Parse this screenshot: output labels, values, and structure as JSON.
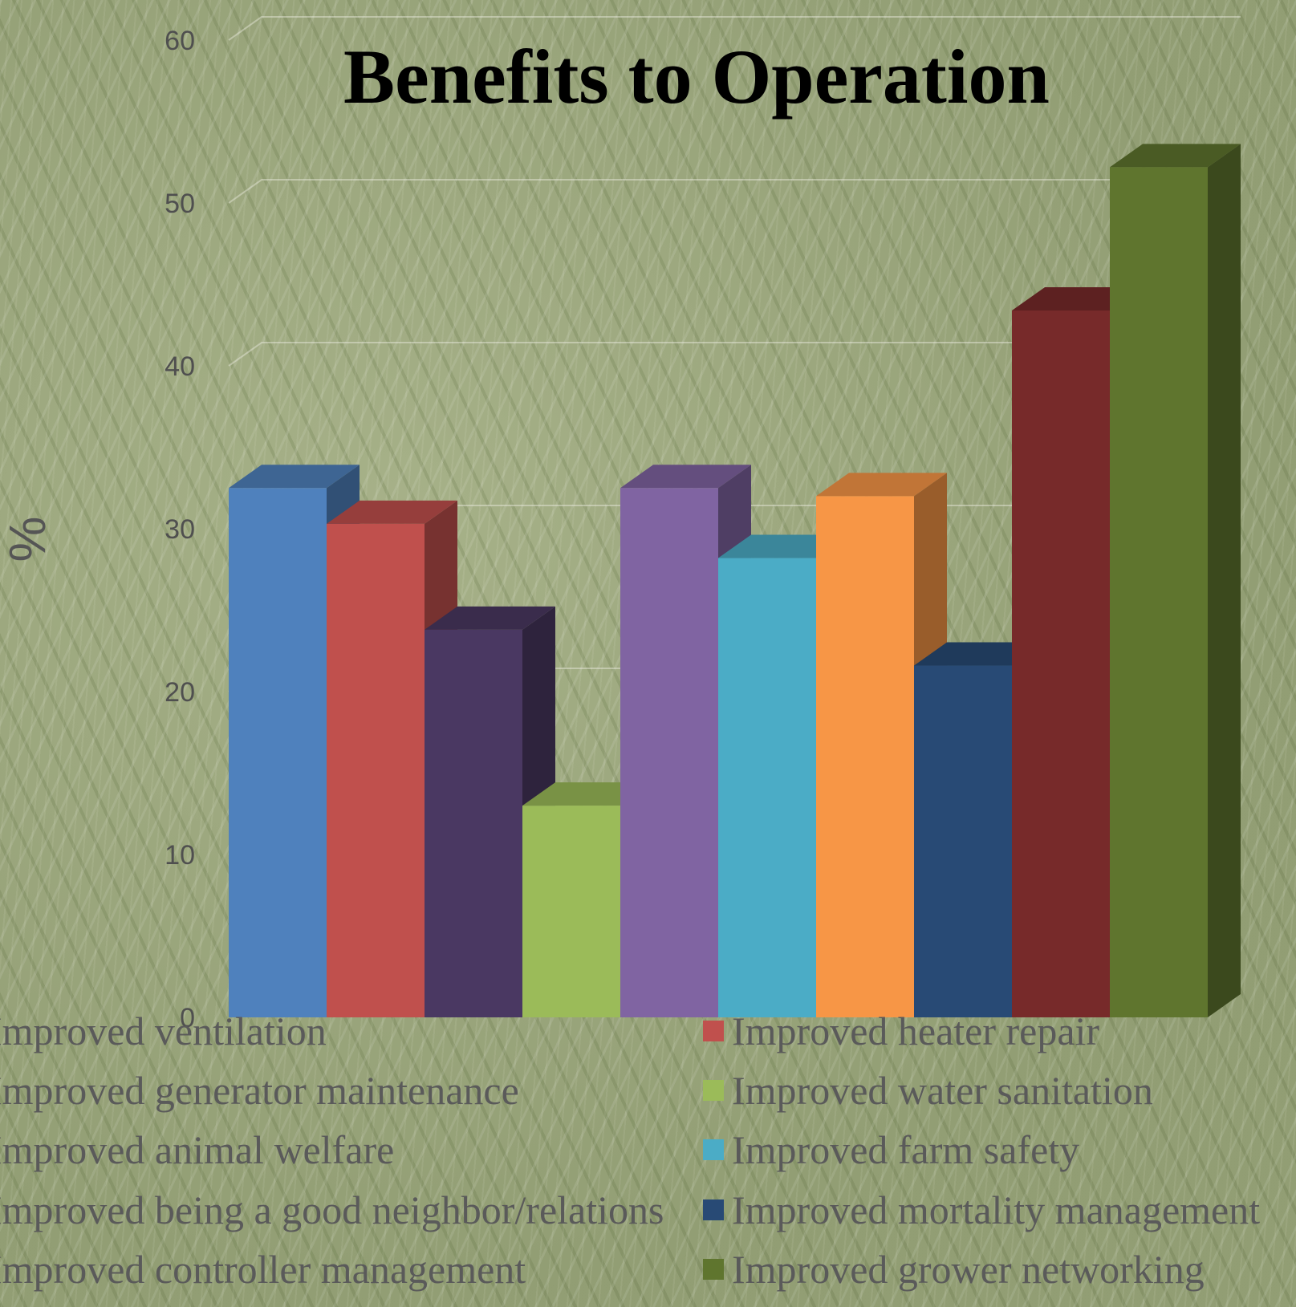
{
  "chart_data": {
    "type": "bar",
    "title": "Benefits to Operation",
    "xlabel": "",
    "ylabel": "%",
    "ylim": [
      0,
      60
    ],
    "yticks": [
      0,
      10,
      20,
      30,
      40,
      50,
      60
    ],
    "grid": true,
    "legend_position": "bottom",
    "series": [
      {
        "name": "Improved ventilation",
        "value": 32.5,
        "color": "#4f81bd"
      },
      {
        "name": "Improved heater repair",
        "value": 30.3,
        "color": "#c0504d"
      },
      {
        "name": "Improved generator maintenance",
        "value": 23.8,
        "color": "#4a3862"
      },
      {
        "name": "Improved water sanitation",
        "value": 13.0,
        "color": "#9bbb59"
      },
      {
        "name": "Improved animal welfare",
        "value": 32.5,
        "color": "#8064a2"
      },
      {
        "name": "Improved farm safety",
        "value": 28.2,
        "color": "#4bacc6"
      },
      {
        "name": "Improved controller management",
        "value": 32.0,
        "color": "#f79646"
      },
      {
        "name": "Improved mortality management",
        "value": 21.6,
        "color": "#284a75"
      },
      {
        "name": "Improved being a good neighbor/relations",
        "value": 43.4,
        "color": "#772a2a"
      },
      {
        "name": "Improved grower networking",
        "value": 52.2,
        "color": "#5f752e"
      }
    ],
    "legend_order": [
      0,
      1,
      2,
      3,
      4,
      5,
      8,
      7,
      6,
      9
    ]
  }
}
